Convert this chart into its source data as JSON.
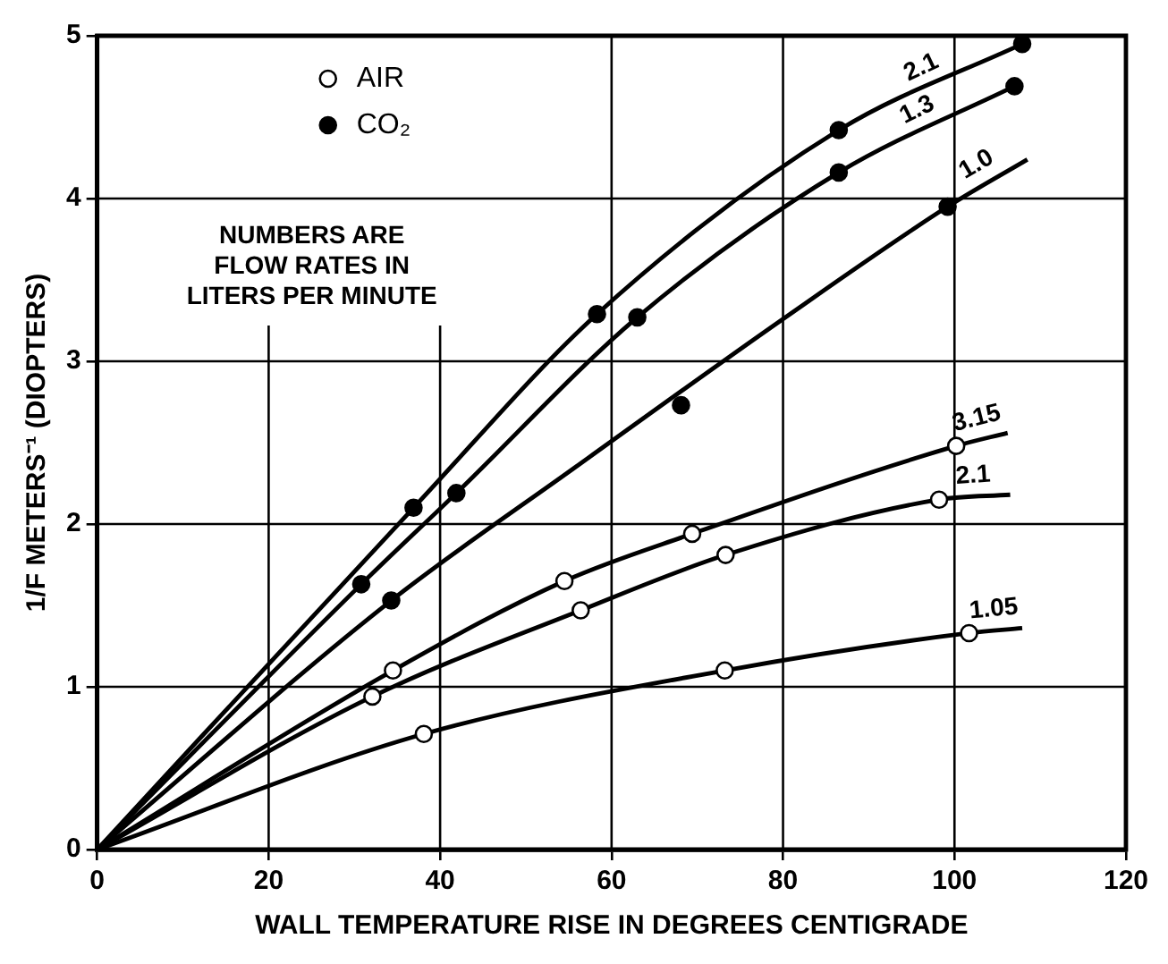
{
  "chart_data": {
    "type": "line",
    "xlabel": "WALL TEMPERATURE RISE IN DEGREES CENTIGRADE",
    "ylabel": "1/F METERS⁻¹ (DIOPTERS)",
    "xlim": [
      0,
      120
    ],
    "xticks": [
      0,
      20,
      40,
      60,
      80,
      100,
      120
    ],
    "ylim": [
      0,
      5
    ],
    "yticks": [
      0,
      1,
      2,
      3,
      4,
      5
    ],
    "grid": true,
    "legend": "top left",
    "line_style": "solid",
    "annotations": [
      "NUMBERS ARE\nFLOW RATES IN\nLITERS PER MINUTE"
    ],
    "series": [
      {
        "name": "2.1",
        "marker": "none",
        "color": "#000000",
        "x": [
          0,
          36.9,
          58.3,
          86.5,
          107.9
        ],
        "values": [
          0,
          2.1,
          3.29,
          4.42,
          4.95
        ]
      },
      {
        "name": "1.3",
        "marker": "none",
        "color": "#000000",
        "x": [
          0,
          30.8,
          41.9,
          63,
          86.5,
          107
        ],
        "values": [
          0,
          1.63,
          2.19,
          3.27,
          4.16,
          4.69
        ]
      },
      {
        "name": "1.0",
        "marker": "none",
        "color": "#000000",
        "x": [
          0,
          34.3,
          55.8,
          80,
          99.2,
          108.5
        ],
        "values": [
          0,
          1.53,
          2.35,
          3.26,
          3.95,
          4.24
        ]
      },
      {
        "name": "3.15",
        "marker": "none",
        "color": "#000000",
        "x": [
          0,
          34.5,
          54.5,
          69.4,
          100.2,
          106.2
        ],
        "values": [
          0,
          1.1,
          1.65,
          1.94,
          2.48,
          2.56
        ]
      },
      {
        "name": "2.1",
        "marker": "none",
        "color": "#000000",
        "x": [
          0,
          32.1,
          56.4,
          73.3,
          98.2,
          106.5
        ],
        "values": [
          0,
          0.94,
          1.47,
          1.81,
          2.15,
          2.18
        ]
      },
      {
        "name": "1.05",
        "marker": "none",
        "color": "#000000",
        "x": [
          0,
          38.1,
          73.2,
          101.7,
          107.9
        ],
        "values": [
          0,
          0.71,
          1.1,
          1.33,
          1.36
        ]
      },
      {
        "name": "AIR",
        "type": "scatter",
        "marker": "circle",
        "color": "#ffffff",
        "x": [
          34.5,
          54.5,
          69.4,
          100.2,
          32.1,
          56.4,
          73.3,
          98.2,
          38.1,
          73.2,
          101.7
        ],
        "values": [
          1.1,
          1.65,
          1.94,
          2.48,
          0.94,
          1.47,
          1.81,
          2.15,
          0.71,
          1.1,
          1.33
        ]
      },
      {
        "name": "CO₂",
        "type": "scatter",
        "marker": "circle",
        "color": "#000000",
        "x": [
          30.8,
          36.9,
          58.3,
          86.5,
          107.9,
          41.9,
          63,
          86.5,
          107,
          34.3,
          68.1,
          99.2
        ],
        "values": [
          1.63,
          2.1,
          3.29,
          4.42,
          4.95,
          2.19,
          3.27,
          4.16,
          4.69,
          1.53,
          2.73,
          3.95
        ]
      }
    ]
  }
}
